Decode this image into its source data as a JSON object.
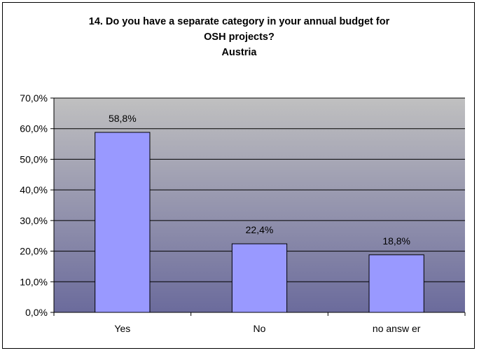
{
  "chart_data": {
    "type": "bar",
    "title_lines": [
      "14. Do you have a separate category in your annual budget for",
      "OSH projects?",
      "Austria"
    ],
    "categories": [
      "Yes",
      "No",
      "no answ er"
    ],
    "values": [
      58.8,
      22.4,
      18.8
    ],
    "data_labels": [
      "58,8%",
      "22,4%",
      "18,8%"
    ],
    "y_ticks": [
      0,
      10,
      20,
      30,
      40,
      50,
      60,
      70
    ],
    "y_tick_labels": [
      "0,0%",
      "10,0%",
      "20,0%",
      "30,0%",
      "40,0%",
      "50,0%",
      "60,0%",
      "70,0%"
    ],
    "ylim": [
      0,
      70
    ],
    "grid": true,
    "legend": "none",
    "colors": {
      "bar_fill": "#9999ff",
      "bar_stroke": "#000000",
      "plot_bg_top": "#c0c0c0",
      "plot_bg_bottom": "#6b6b9c",
      "gridline": "#000000"
    }
  }
}
